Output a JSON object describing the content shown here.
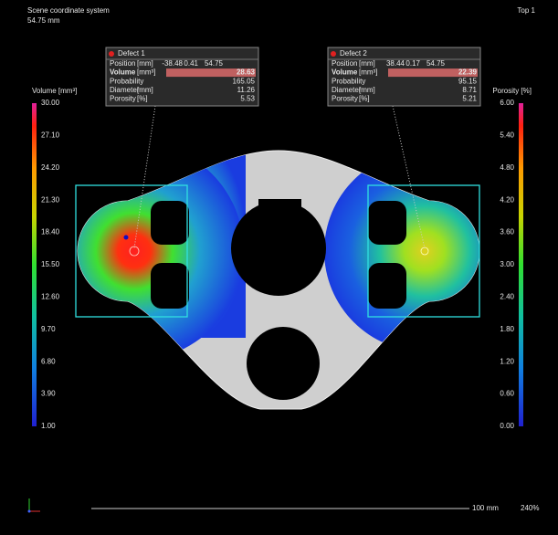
{
  "header": {
    "coordinate_system": "Scene coordinate system",
    "depth": "54.75 mm",
    "view": "Top 1"
  },
  "scales": [
    {
      "title": "Volume [mm³]",
      "ticks": [
        "30.00",
        "27.10",
        "24.20",
        "21.30",
        "18.40",
        "15.50",
        "12.60",
        "9.70",
        "6.80",
        "3.90",
        "1.00"
      ]
    },
    {
      "title": "Porosity [%]",
      "ticks": [
        "6.00",
        "5.40",
        "4.80",
        "4.20",
        "3.60",
        "3.00",
        "2.40",
        "1.80",
        "1.20",
        "0.60",
        "0.00"
      ]
    }
  ],
  "panels": [
    {
      "title": "Defect 1",
      "rows": [
        {
          "label": "Position",
          "unit": "[mm]",
          "values": [
            "-38.48",
            "0.41",
            "54.75"
          ]
        },
        {
          "label": "Volume",
          "unit": "[mm³]",
          "values": [
            "28.63"
          ]
        },
        {
          "label": "Probability",
          "values": [
            "165.05"
          ]
        },
        {
          "label": "Diameter",
          "unit": "[mm]",
          "values": [
            "11.26"
          ]
        },
        {
          "label": "Porosity",
          "unit": "[%]",
          "values": [
            "5.53"
          ]
        }
      ]
    },
    {
      "title": "Defect 2",
      "rows": [
        {
          "label": "Position",
          "unit": "[mm]",
          "values": [
            "38.44",
            "0.17",
            "54.75"
          ]
        },
        {
          "label": "Volume",
          "unit": "[mm³]",
          "values": [
            "22.39"
          ]
        },
        {
          "label": "Probability",
          "values": [
            "95.15"
          ]
        },
        {
          "label": "Diameter",
          "unit": "[mm]",
          "values": [
            "8.71"
          ]
        },
        {
          "label": "Porosity",
          "unit": "[%]",
          "values": [
            "5.21"
          ]
        }
      ]
    }
  ],
  "footer": {
    "scale_bar": "100 mm",
    "zoom": "240%"
  }
}
